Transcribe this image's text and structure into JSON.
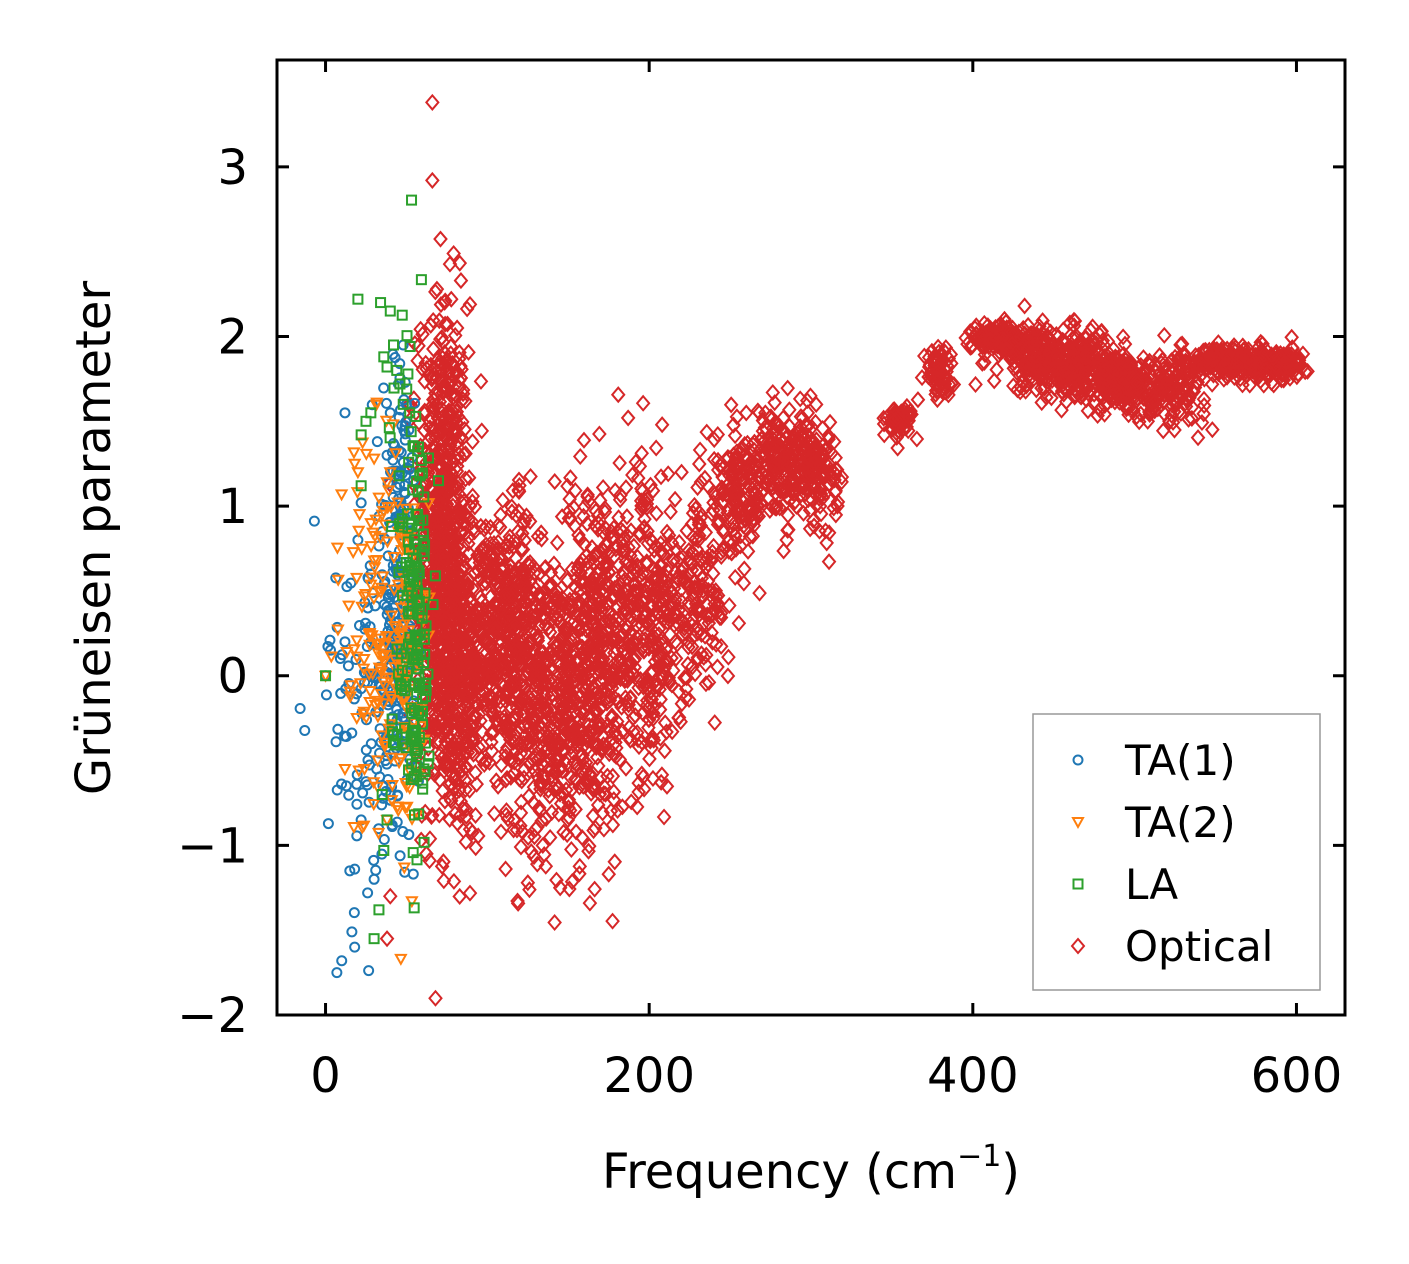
{
  "chart_data": {
    "type": "scatter",
    "xlabel": "Frequency (cm",
    "xlabel_sup": "−1",
    "xlabel_close": ")",
    "ylabel": "Grüneisen parameter",
    "xlim": [
      -30,
      630
    ],
    "ylim": [
      -2.0,
      3.63
    ],
    "x_ticks": [
      0,
      200,
      400,
      600
    ],
    "x_tick_labels": [
      "0",
      "200",
      "400",
      "600"
    ],
    "y_ticks": [
      -2,
      -1,
      0,
      1,
      2,
      3
    ],
    "y_tick_labels": [
      "−2",
      "−1",
      "0",
      "1",
      "2",
      "3"
    ],
    "legend_position": "lower-right",
    "series": [
      {
        "name": "TA(1)",
        "marker": "circle",
        "color": "#1f77b4",
        "points": [
          [
            0,
            0
          ],
          [
            7,
            -1.75
          ],
          [
            10,
            -1.68
          ],
          [
            12,
            0.2
          ],
          [
            12,
            1.55
          ],
          [
            15,
            -1.15
          ],
          [
            18,
            -1.14
          ],
          [
            18,
            -1.6
          ],
          [
            20,
            0.8
          ],
          [
            22,
            -0.85
          ],
          [
            24,
            0.02
          ],
          [
            26,
            -1.28
          ],
          [
            28,
            0.6
          ],
          [
            30,
            -1.2
          ],
          [
            32,
            1.38
          ],
          [
            35,
            0.85
          ],
          [
            37,
            -0.5
          ],
          [
            38,
            1.3
          ],
          [
            40,
            1.55
          ],
          [
            42,
            0.4
          ],
          [
            44,
            -0.2
          ],
          [
            45,
            1.72
          ],
          [
            46,
            1.0
          ],
          [
            47,
            0.3
          ],
          [
            48,
            1.95
          ],
          [
            50,
            1.6
          ]
        ],
        "clusters": [
          {
            "cx": 28,
            "cy": -0.2,
            "sx": 14,
            "sy": 0.55,
            "n": 130
          },
          {
            "cx": 45,
            "cy": 0.3,
            "sx": 5,
            "sy": 0.6,
            "n": 170
          },
          {
            "cx": 47,
            "cy": 1.2,
            "sx": 3,
            "sy": 0.45,
            "n": 40
          }
        ]
      },
      {
        "name": "TA(2)",
        "marker": "triangle",
        "color": "#ff7f0e",
        "points": [
          [
            0,
            0
          ],
          [
            12,
            -0.55
          ],
          [
            18,
            1.25
          ],
          [
            20,
            1.2
          ],
          [
            28,
            0.9
          ],
          [
            30,
            1.28
          ],
          [
            33,
            1.05
          ],
          [
            35,
            0.95
          ],
          [
            38,
            -0.85
          ],
          [
            40,
            1.2
          ],
          [
            45,
            0.85
          ],
          [
            50,
            0.75
          ]
        ],
        "clusters": [
          {
            "cx": 32,
            "cy": 0.25,
            "sx": 10,
            "sy": 0.6,
            "n": 130
          },
          {
            "cx": 50,
            "cy": 0.1,
            "sx": 5,
            "sy": 0.5,
            "n": 90
          }
        ]
      },
      {
        "name": "LA",
        "marker": "square",
        "color": "#2ca02c",
        "points": [
          [
            0,
            0
          ],
          [
            20,
            2.22
          ],
          [
            25,
            1.5
          ],
          [
            28,
            1.55
          ],
          [
            30,
            -1.55
          ],
          [
            33,
            -1.38
          ],
          [
            34,
            2.2
          ],
          [
            36,
            1.88
          ],
          [
            38,
            1.82
          ],
          [
            40,
            2.15
          ],
          [
            42,
            1.95
          ],
          [
            44,
            1.8
          ],
          [
            46,
            1.72
          ],
          [
            48,
            1.6
          ],
          [
            52,
            1.55
          ],
          [
            22,
            1.42
          ],
          [
            22,
            1.12
          ],
          [
            36,
            -1.03
          ],
          [
            35,
            -0.7
          ],
          [
            38,
            -0.85
          ]
        ],
        "clusters": [
          {
            "cx": 52,
            "cy": 0.6,
            "sx": 6,
            "sy": 0.75,
            "n": 110
          },
          {
            "cx": 57,
            "cy": 0.15,
            "sx": 3,
            "sy": 0.5,
            "n": 80
          }
        ]
      },
      {
        "name": "Optical",
        "marker": "diamond",
        "color": "#d62728",
        "points": [
          [
            66,
            3.38
          ],
          [
            66,
            2.92
          ],
          [
            38,
            -1.55
          ],
          [
            40,
            -1.3
          ],
          [
            285,
            0.8
          ],
          [
            268,
            1.55
          ],
          [
            298,
            1.55
          ],
          [
            208,
            1.48
          ],
          [
            220,
            1.2
          ],
          [
            145,
            -1.25
          ],
          [
            125,
            -1.22
          ],
          [
            175,
            -1.17
          ],
          [
            432,
            2.18
          ],
          [
            460,
            2.08
          ],
          [
            187,
            1.52
          ]
        ],
        "clusters": [
          {
            "cx": 72,
            "cy": 0.8,
            "sx": 8,
            "sy": 0.7,
            "n": 700
          },
          {
            "cx": 80,
            "cy": -0.1,
            "sx": 10,
            "sy": 0.45,
            "n": 300
          },
          {
            "cx": 98,
            "cy": 0.3,
            "sx": 12,
            "sy": 0.35,
            "n": 260
          },
          {
            "cx": 118,
            "cy": 0.4,
            "sx": 8,
            "sy": 0.3,
            "n": 180
          },
          {
            "cx": 140,
            "cy": -0.15,
            "sx": 18,
            "sy": 0.45,
            "n": 600
          },
          {
            "cx": 165,
            "cy": 0.2,
            "sx": 12,
            "sy": 0.5,
            "n": 260
          },
          {
            "cx": 188,
            "cy": 0.35,
            "sx": 12,
            "sy": 0.45,
            "n": 260
          },
          {
            "cx": 205,
            "cy": 0.15,
            "sx": 8,
            "sy": 0.4,
            "n": 140
          },
          {
            "cx": 230,
            "cy": 0.5,
            "sx": 12,
            "sy": 0.25,
            "n": 170
          },
          {
            "cx": 255,
            "cy": 1.0,
            "sx": 8,
            "sy": 0.15,
            "n": 100
          },
          {
            "cx": 280,
            "cy": 1.25,
            "sx": 15,
            "sy": 0.15,
            "n": 260
          },
          {
            "cx": 305,
            "cy": 1.2,
            "sx": 6,
            "sy": 0.15,
            "n": 100
          },
          {
            "cx": 355,
            "cy": 1.5,
            "sx": 4,
            "sy": 0.05,
            "n": 60
          },
          {
            "cx": 378,
            "cy": 1.8,
            "sx": 5,
            "sy": 0.07,
            "n": 70
          },
          {
            "cx": 420,
            "cy": 1.98,
            "sx": 10,
            "sy": 0.05,
            "n": 170
          },
          {
            "cx": 445,
            "cy": 1.85,
            "sx": 12,
            "sy": 0.09,
            "n": 200
          },
          {
            "cx": 470,
            "cy": 1.82,
            "sx": 12,
            "sy": 0.1,
            "n": 200
          },
          {
            "cx": 492,
            "cy": 1.72,
            "sx": 8,
            "sy": 0.08,
            "n": 140
          },
          {
            "cx": 520,
            "cy": 1.7,
            "sx": 12,
            "sy": 0.1,
            "n": 180
          },
          {
            "cx": 550,
            "cy": 1.86,
            "sx": 8,
            "sy": 0.04,
            "n": 110
          },
          {
            "cx": 570,
            "cy": 1.85,
            "sx": 8,
            "sy": 0.05,
            "n": 110
          },
          {
            "cx": 592,
            "cy": 1.83,
            "sx": 7,
            "sy": 0.05,
            "n": 100
          }
        ]
      }
    ]
  }
}
